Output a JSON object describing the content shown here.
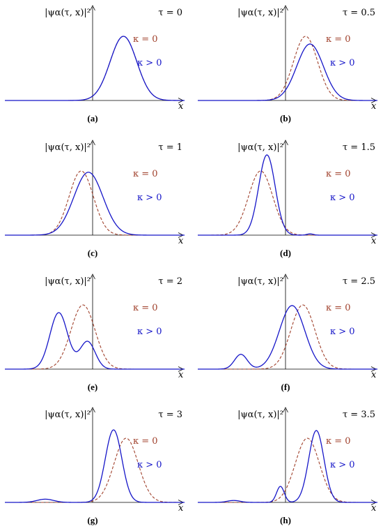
{
  "colors": {
    "kappa_zero": "#a0412c",
    "kappa_pos": "#1515c8",
    "axis": "#000000"
  },
  "labels": {
    "ylabel": "|ψα(τ, x)|²",
    "xlabel": "x",
    "kappa_zero": "κ = 0",
    "kappa_pos": "κ > 0"
  },
  "chart_data": [
    {
      "type": "line",
      "panel": "(a)",
      "tau_label": "τ = 0",
      "tau": 0,
      "xlim": [
        -1,
        1
      ],
      "ylim": [
        0,
        1
      ],
      "grid": false,
      "series": [
        {
          "name": "κ = 0",
          "style": "dashed",
          "peaks": [
            [
              0.32,
              0.21,
              1.0
            ]
          ]
        },
        {
          "name": "κ > 0",
          "style": "solid",
          "peaks": [
            [
              0.32,
              0.21,
              1.0
            ]
          ]
        }
      ]
    },
    {
      "type": "line",
      "panel": "(b)",
      "tau_label": "τ = 0.5",
      "tau": 0.5,
      "xlim": [
        -1,
        1
      ],
      "ylim": [
        0,
        1
      ],
      "grid": false,
      "series": [
        {
          "name": "κ = 0",
          "style": "dashed",
          "peaks": [
            [
              0.2,
              0.19,
              1.0
            ]
          ]
        },
        {
          "name": "κ > 0",
          "style": "solid",
          "peaks": [
            [
              0.25,
              0.21,
              0.88
            ]
          ]
        }
      ]
    },
    {
      "type": "line",
      "panel": "(c)",
      "tau_label": "τ = 1",
      "tau": 1,
      "xlim": [
        -1,
        1
      ],
      "ylim": [
        0,
        1
      ],
      "grid": false,
      "series": [
        {
          "name": "κ = 0",
          "style": "dashed",
          "peaks": [
            [
              -0.15,
              0.19,
              1.0
            ]
          ]
        },
        {
          "name": "κ > 0",
          "style": "solid",
          "peaks": [
            [
              -0.07,
              0.23,
              0.98
            ]
          ]
        }
      ]
    },
    {
      "type": "line",
      "panel": "(d)",
      "tau_label": "τ = 1.5",
      "tau": 1.5,
      "xlim": [
        -1,
        1
      ],
      "ylim": [
        0,
        1
      ],
      "grid": false,
      "series": [
        {
          "name": "κ = 0",
          "style": "dashed",
          "peaks": [
            [
              -0.3,
              0.19,
              1.0
            ]
          ]
        },
        {
          "name": "κ > 0",
          "style": "solid",
          "peaks": [
            [
              -0.23,
              0.13,
              1.25
            ],
            [
              0.25,
              0.05,
              0.02
            ]
          ]
        }
      ]
    },
    {
      "type": "line",
      "panel": "(e)",
      "tau_label": "τ = 2",
      "tau": 2,
      "xlim": [
        -1,
        1
      ],
      "ylim": [
        0,
        1
      ],
      "grid": false,
      "series": [
        {
          "name": "κ = 0",
          "style": "dashed",
          "peaks": [
            [
              -0.13,
              0.19,
              1.0
            ]
          ]
        },
        {
          "name": "κ > 0",
          "style": "solid",
          "peaks": [
            [
              -0.4,
              0.14,
              0.88
            ],
            [
              -0.08,
              0.12,
              0.43
            ]
          ]
        }
      ]
    },
    {
      "type": "line",
      "panel": "(f)",
      "tau_label": "τ = 2.5",
      "tau": 2.5,
      "xlim": [
        -1,
        1
      ],
      "ylim": [
        0,
        1
      ],
      "grid": false,
      "series": [
        {
          "name": "κ = 0",
          "style": "dashed",
          "peaks": [
            [
              0.17,
              0.19,
              1.0
            ]
          ]
        },
        {
          "name": "κ > 0",
          "style": "solid",
          "peaks": [
            [
              0.05,
              0.2,
              0.99
            ],
            [
              -0.52,
              0.1,
              0.23
            ]
          ]
        }
      ]
    },
    {
      "type": "line",
      "panel": "(g)",
      "tau_label": "τ = 3",
      "tau": 3,
      "xlim": [
        -1,
        1
      ],
      "ylim": [
        0,
        1
      ],
      "grid": false,
      "series": [
        {
          "name": "κ = 0",
          "style": "dashed",
          "peaks": [
            [
              0.35,
              0.19,
              1.0
            ]
          ]
        },
        {
          "name": "κ > 0",
          "style": "solid",
          "peaks": [
            [
              0.21,
              0.13,
              1.13
            ],
            [
              -0.55,
              0.13,
              0.05
            ]
          ]
        }
      ]
    },
    {
      "type": "line",
      "panel": "(h)",
      "tau_label": "τ = 3.5",
      "tau": 3.5,
      "xlim": [
        -1,
        1
      ],
      "ylim": [
        0,
        1
      ],
      "grid": false,
      "series": [
        {
          "name": "κ = 0",
          "style": "dashed",
          "peaks": [
            [
              0.22,
              0.19,
              1.0
            ]
          ]
        },
        {
          "name": "κ > 0",
          "style": "solid",
          "peaks": [
            [
              0.32,
              0.12,
              1.12
            ],
            [
              -0.08,
              0.06,
              0.25
            ],
            [
              -0.6,
              0.1,
              0.03
            ]
          ]
        }
      ]
    }
  ]
}
